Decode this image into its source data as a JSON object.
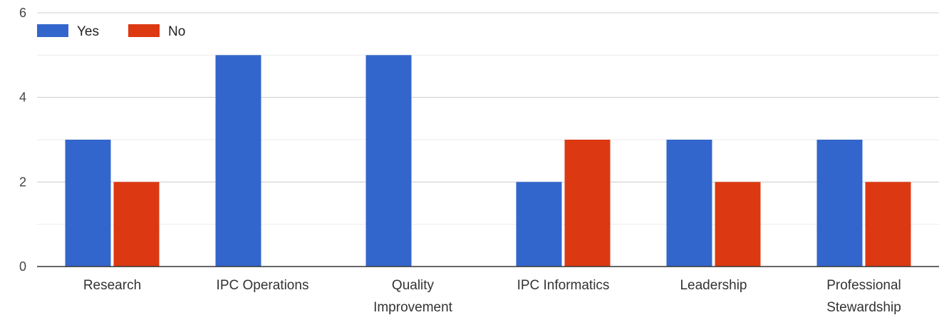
{
  "chart_data": {
    "type": "bar",
    "categories": [
      [
        "Research"
      ],
      [
        "IPC Operations"
      ],
      [
        "Quality",
        "Improvement"
      ],
      [
        "IPC Informatics"
      ],
      [
        "Leadership"
      ],
      [
        "Professional",
        "Stewardship"
      ]
    ],
    "series": [
      {
        "name": "Yes",
        "color": "#3366cc",
        "values": [
          3,
          5,
          5,
          2,
          3,
          3
        ]
      },
      {
        "name": "No",
        "color": "#dc3912",
        "values": [
          2,
          0,
          0,
          3,
          2,
          2
        ]
      }
    ],
    "ylim": [
      0,
      6
    ],
    "yticks": [
      "0",
      "2",
      "4",
      "6"
    ],
    "grid": true,
    "legend_position": "top-left"
  }
}
